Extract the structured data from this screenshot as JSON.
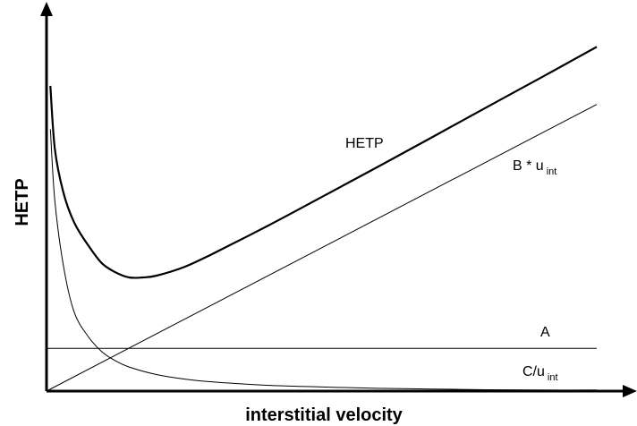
{
  "chart_data": {
    "type": "line",
    "title": "",
    "xlabel": "interstitial velocity",
    "ylabel": "HETP",
    "xlim": [
      0,
      10
    ],
    "ylim": [
      0,
      10
    ],
    "grid": false,
    "legend": "none",
    "curve_labels": {
      "hetp": "HETP",
      "b_term": "B * u",
      "b_term_sub": "int",
      "a_term": "A",
      "c_term": "C/u",
      "c_term_sub": "int"
    },
    "series": [
      {
        "key": "hetp",
        "x": [
          0.07,
          0.15,
          0.3,
          0.5,
          0.75,
          1.0,
          1.25,
          1.5,
          1.75,
          2.0,
          2.5,
          3.0,
          4.0,
          5.0,
          6.0,
          7.0,
          8.0,
          9.0,
          10.0
        ],
        "y": [
          8.86,
          7.05,
          5.8,
          4.9,
          4.25,
          3.72,
          3.45,
          3.3,
          3.3,
          3.35,
          3.6,
          3.97,
          4.78,
          5.63,
          6.49,
          7.36,
          8.24,
          9.11,
          9.99
        ]
      },
      {
        "key": "b_term",
        "x": [
          0.0,
          10.0
        ],
        "y": [
          0.0,
          8.32
        ]
      },
      {
        "key": "a_term",
        "x": [
          0.0,
          10.0
        ],
        "y": [
          1.24,
          1.24
        ]
      },
      {
        "key": "c_term",
        "x": [
          0.07,
          0.15,
          0.3,
          0.5,
          0.75,
          1.0,
          1.25,
          1.5,
          2.0,
          2.5,
          3.0,
          4.0,
          5.0,
          6.0,
          7.0,
          8.0,
          9.0,
          10.0
        ],
        "y": [
          7.6,
          5.55,
          3.7,
          2.3,
          1.6,
          1.15,
          0.88,
          0.7,
          0.48,
          0.35,
          0.27,
          0.17,
          0.12,
          0.08,
          0.06,
          0.04,
          0.03,
          0.03
        ]
      }
    ]
  }
}
